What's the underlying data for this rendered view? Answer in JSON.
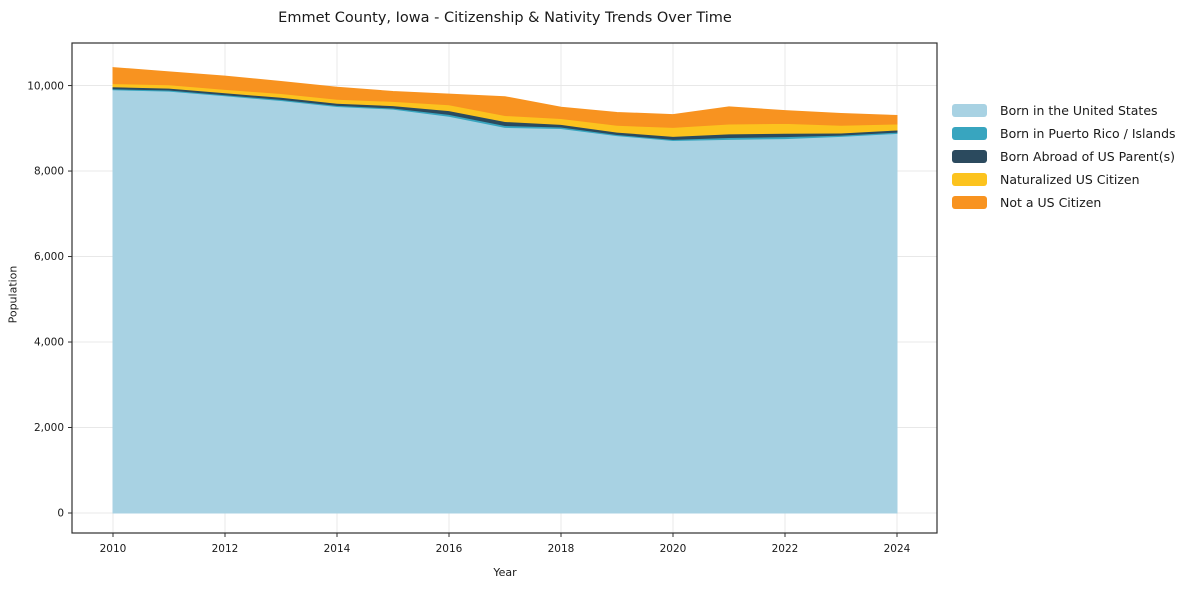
{
  "title": "Emmet County, Iowa - Citizenship & Nativity Trends Over Time",
  "chart_data": {
    "type": "area",
    "stacked": true,
    "title": "Emmet County, Iowa - Citizenship & Nativity Trends Over Time",
    "xlabel": "Year",
    "ylabel": "Population",
    "x": [
      2010,
      2011,
      2012,
      2013,
      2014,
      2015,
      2016,
      2017,
      2018,
      2019,
      2020,
      2021,
      2022,
      2023,
      2024
    ],
    "series": [
      {
        "name": "Born in the United States",
        "color": "#A8D2E3",
        "values": [
          9900,
          9870,
          9760,
          9650,
          9510,
          9450,
          9280,
          9020,
          8995,
          8830,
          8715,
          8740,
          8760,
          8810,
          8880
        ]
      },
      {
        "name": "Born in Puerto Rico / Islands",
        "color": "#38A5BF",
        "values": [
          25,
          25,
          25,
          25,
          25,
          25,
          45,
          45,
          35,
          25,
          25,
          45,
          45,
          30,
          30
        ]
      },
      {
        "name": "Born Abroad of US Parent(s)",
        "color": "#2B4A5E",
        "values": [
          45,
          45,
          45,
          50,
          50,
          55,
          90,
          95,
          60,
          55,
          70,
          85,
          80,
          50,
          50
        ]
      },
      {
        "name": "Naturalized US Citizen",
        "color": "#FCC31E",
        "values": [
          75,
          80,
          80,
          90,
          95,
          100,
          135,
          140,
          140,
          160,
          210,
          230,
          230,
          180,
          140
        ]
      },
      {
        "name": "Not a US Citizen",
        "color": "#F89320",
        "values": [
          375,
          300,
          310,
          280,
          280,
          230,
          250,
          440,
          260,
          300,
          300,
          400,
          300,
          275,
          200
        ]
      }
    ],
    "totals": [
      10420,
      10320,
      10220,
      10095,
      9960,
      9860,
      9800,
      9740,
      9490,
      9370,
      9320,
      9500,
      9415,
      9345,
      9300
    ],
    "x_ticks": [
      2010,
      2012,
      2014,
      2016,
      2018,
      2020,
      2022,
      2024
    ],
    "x_tick_labels": [
      "2010",
      "2012",
      "2014",
      "2016",
      "2018",
      "2020",
      "2022",
      "2024"
    ],
    "y_ticks": [
      0,
      2000,
      4000,
      6000,
      8000,
      10000
    ],
    "y_tick_labels": [
      "0",
      "2,000",
      "4,000",
      "6,000",
      "8,000",
      "10,000"
    ],
    "ylim": [
      -470,
      11000
    ],
    "xlim": [
      2009.3,
      2024.7
    ],
    "grid": true,
    "grid_color": "#e8e8e8",
    "spine_color": "#2f2f2f",
    "tick_label_color": "#1a1a1a",
    "legend_position": "right"
  }
}
